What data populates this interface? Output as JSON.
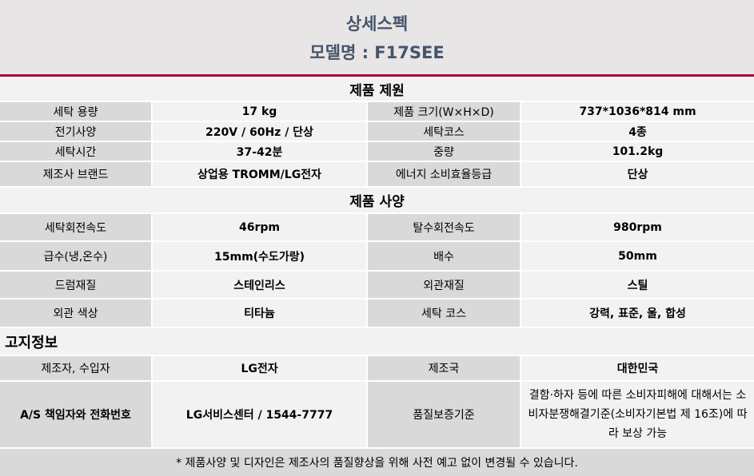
{
  "header": {
    "title": "상세스펙",
    "model": "모델명 : F17SEE"
  },
  "section1": {
    "title": "제품 제원",
    "rows": [
      [
        "세탁 용량",
        "17 kg",
        "제품 크기(W×H×D)",
        "737*1036*814 mm"
      ],
      [
        "전기사양",
        "220V / 60Hz / 단상",
        "세탁코스",
        "4종"
      ],
      [
        "세탁시간",
        "37-42분",
        "중량",
        "101.2kg"
      ],
      [
        "제조사 브랜드",
        "상업용 TROMM/LG전자",
        "에너지 소비효율등급",
        "단상"
      ]
    ]
  },
  "section2": {
    "title": "제품 사양",
    "rows": [
      [
        "세탁회전속도",
        "46rpm",
        "탈수회전속도",
        "980rpm"
      ],
      [
        "급수(냉,온수)",
        "15mm(수도가랑)",
        "배수",
        "50mm"
      ],
      [
        "드럼재질",
        "스테인리스",
        "외관재질",
        "스틸"
      ],
      [
        "외관 색상",
        "티타늄",
        "세탁 코스",
        "강력, 표준, 울, 합성"
      ]
    ]
  },
  "section3": {
    "title": "고지정보",
    "rows": [
      [
        "제조자, 수입자",
        "LG전자",
        "제조국",
        "대한민국"
      ],
      [
        "A/S 책임자와 전화번호",
        "LG서비스센터 / 1544-7777",
        "품질보증기준",
        "결함·하자 등에 따른 소비자피해에 대해서는 소비자분쟁해결기준(소비자기본법 제 16조)에 따라 보상 가능"
      ]
    ]
  },
  "footer": "* 제품사양 및 디자인은 제조사의 품질향상을 위해 사전 예고 없이 변경될 수 있습니다.",
  "colors": {
    "accent": "#a50034",
    "title": "#44546a",
    "label_bg": "#d9d9d9",
    "value_bg": "#f2f2f2"
  }
}
